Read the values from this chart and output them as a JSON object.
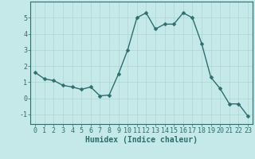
{
  "x": [
    0,
    1,
    2,
    3,
    4,
    5,
    6,
    7,
    8,
    9,
    10,
    11,
    12,
    13,
    14,
    15,
    16,
    17,
    18,
    19,
    20,
    21,
    22,
    23
  ],
  "y": [
    1.6,
    1.2,
    1.1,
    0.8,
    0.7,
    0.55,
    0.7,
    0.15,
    0.2,
    1.5,
    3.0,
    5.0,
    5.3,
    4.3,
    4.6,
    4.6,
    5.3,
    5.0,
    3.4,
    1.3,
    0.6,
    -0.35,
    -0.35,
    -1.1
  ],
  "line_color": "#2d6e6e",
  "marker_color": "#2d6e6e",
  "bg_color": "#c5e8e8",
  "grid_color": "#afd4d4",
  "xlabel": "Humidex (Indice chaleur)",
  "xlim": [
    -0.5,
    23.5
  ],
  "ylim": [
    -1.6,
    6.0
  ],
  "yticks": [
    -1,
    0,
    1,
    2,
    3,
    4,
    5
  ],
  "xticks": [
    0,
    1,
    2,
    3,
    4,
    5,
    6,
    7,
    8,
    9,
    10,
    11,
    12,
    13,
    14,
    15,
    16,
    17,
    18,
    19,
    20,
    21,
    22,
    23
  ],
  "xlabel_fontsize": 7,
  "tick_fontsize": 6,
  "line_width": 1.0,
  "marker_size": 2.5
}
